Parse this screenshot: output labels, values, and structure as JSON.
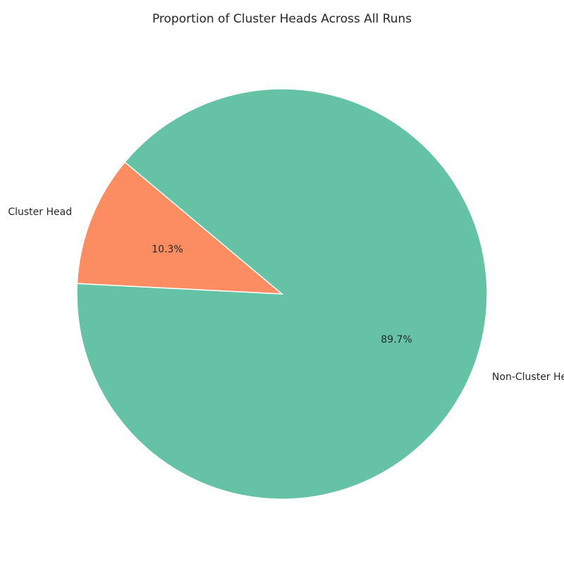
{
  "chart_data": {
    "type": "pie",
    "title": "Proportion of Cluster Heads Across All Runs",
    "slices": [
      {
        "label": "Cluster Head",
        "value": 10.3,
        "pct_text": "10.3%",
        "color": "#fc8d62"
      },
      {
        "label": "Non-Cluster Head",
        "value": 89.7,
        "pct_text": "89.7%",
        "color": "#66c2a5"
      }
    ],
    "start_angle_deg": 140,
    "direction": "counterclockwise"
  }
}
